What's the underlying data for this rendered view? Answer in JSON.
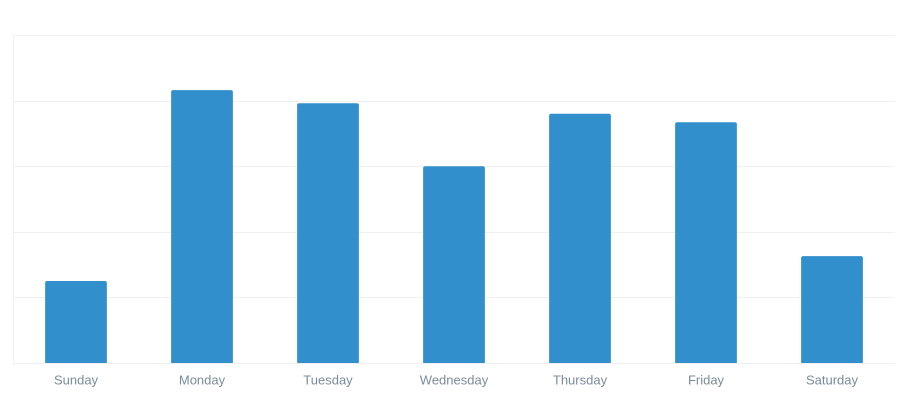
{
  "chart_data": {
    "type": "bar",
    "categories": [
      "Sunday",
      "Monday",
      "Tuesday",
      "Wednesday",
      "Thursday",
      "Friday",
      "Saturday"
    ],
    "values": [
      1.25,
      4.16,
      3.96,
      3.0,
      3.8,
      3.67,
      1.63
    ],
    "color": "#318fcc",
    "ylim": [
      0,
      5
    ],
    "yticks": [
      0,
      1,
      2,
      3,
      4,
      5
    ],
    "grid": true
  }
}
